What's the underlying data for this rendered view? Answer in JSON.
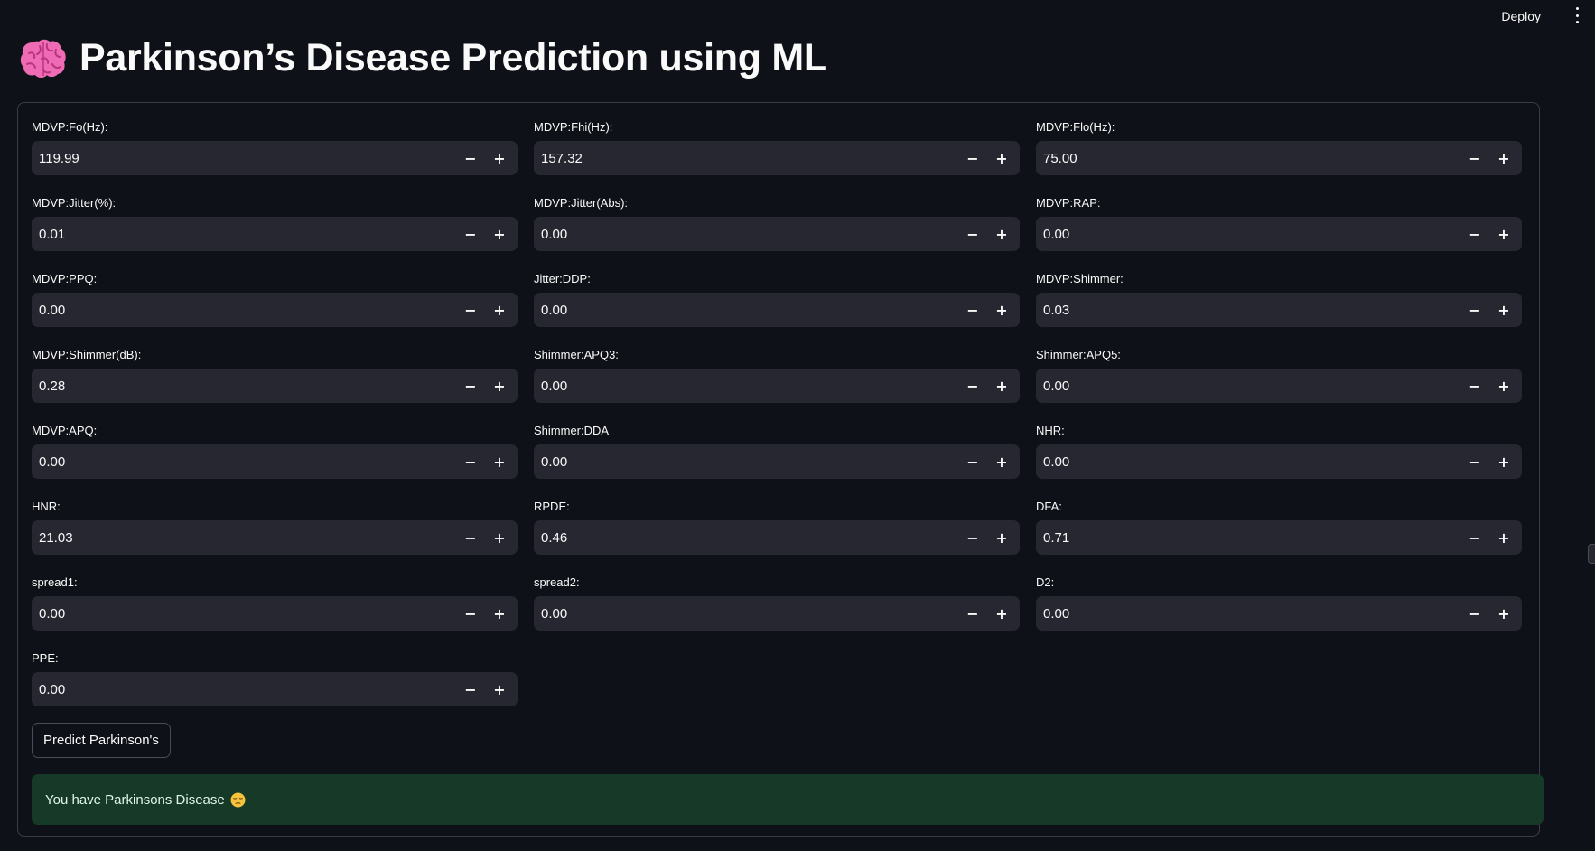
{
  "header": {
    "deploy_label": "Deploy"
  },
  "page": {
    "title": "Parkinson’s Disease Prediction using ML",
    "title_icon": "brain-icon"
  },
  "fields": [
    {
      "label": "MDVP:Fo(Hz):",
      "value": "119.99"
    },
    {
      "label": "MDVP:Fhi(Hz):",
      "value": "157.32"
    },
    {
      "label": "MDVP:Flo(Hz):",
      "value": "75.00"
    },
    {
      "label": "MDVP:Jitter(%):",
      "value": "0.01"
    },
    {
      "label": "MDVP:Jitter(Abs):",
      "value": "0.00"
    },
    {
      "label": "MDVP:RAP:",
      "value": "0.00"
    },
    {
      "label": "MDVP:PPQ:",
      "value": "0.00"
    },
    {
      "label": "Jitter:DDP:",
      "value": "0.00"
    },
    {
      "label": "MDVP:Shimmer:",
      "value": "0.03"
    },
    {
      "label": "MDVP:Shimmer(dB):",
      "value": "0.28"
    },
    {
      "label": "Shimmer:APQ3:",
      "value": "0.00"
    },
    {
      "label": "Shimmer:APQ5:",
      "value": "0.00"
    },
    {
      "label": "MDVP:APQ:",
      "value": "0.00"
    },
    {
      "label": "Shimmer:DDA",
      "value": "0.00"
    },
    {
      "label": "NHR:",
      "value": "0.00"
    },
    {
      "label": "HNR:",
      "value": "21.03"
    },
    {
      "label": "RPDE:",
      "value": "0.46"
    },
    {
      "label": "DFA:",
      "value": "0.71"
    },
    {
      "label": "spread1:",
      "value": "0.00"
    },
    {
      "label": "spread2:",
      "value": "0.00"
    },
    {
      "label": "D2:",
      "value": "0.00"
    },
    {
      "label": "PPE:",
      "value": "0.00"
    }
  ],
  "stepper": {
    "minus": "−",
    "plus": "+"
  },
  "predict_button": "Predict Parkinson's",
  "result": {
    "message": "You have Parkinsons Disease",
    "emoji_icon": "pensive-face-icon"
  },
  "colors": {
    "background": "#0e1117",
    "input_bg": "#262730",
    "success_bg": "#173928"
  }
}
